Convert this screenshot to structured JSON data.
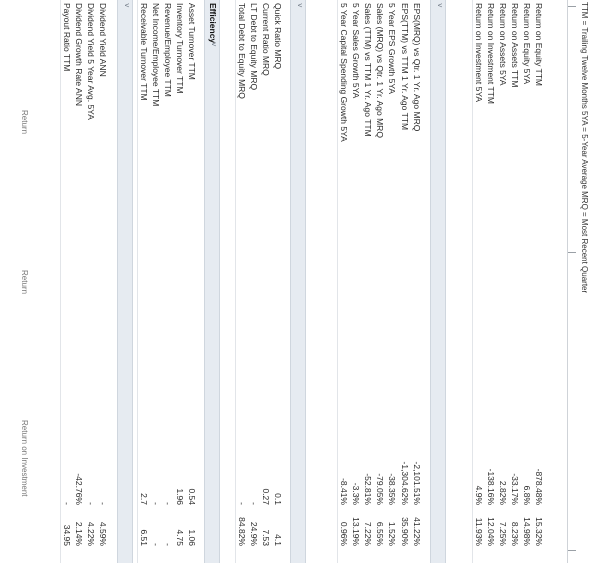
{
  "column_headers": [
    "Return on Investment",
    "Return",
    "Return"
  ],
  "sections": [
    {
      "key": "management",
      "title": "",
      "rows": [
        {
          "label": "Return on Equity TTM",
          "values": [
            "-878.48%",
            "",
            "15.32%"
          ]
        },
        {
          "label": "Return on Equity 5YA",
          "values": [
            "6.8%",
            "",
            "14.98%"
          ]
        },
        {
          "label": "Return on Assets TTM",
          "values": [
            "-33.17%",
            "",
            "8.23%"
          ]
        },
        {
          "label": "Return on Assets 5YA",
          "values": [
            "2.82%",
            "",
            "7.25%"
          ]
        },
        {
          "label": "Return on Investment TTM",
          "values": [
            "-138.16%",
            "",
            "12.04%"
          ]
        },
        {
          "label": "Return on Investment 5YA",
          "values": [
            "4.9%",
            "",
            "11.93%"
          ]
        }
      ]
    },
    {
      "key": "growth",
      "title": "",
      "rows": [
        {
          "label": "EPS(MRQ) vs Qtr. 1 Yr. Ago MRQ",
          "values": [
            "-2,101.51%",
            "",
            "41.22%"
          ]
        },
        {
          "label": "EPS(TTM) vs TTM 1 Yr. Ago TTM",
          "values": [
            "-1,304.62%",
            "",
            "35.90%"
          ]
        },
        {
          "label": "5 Year EPS Growth 5YA",
          "values": [
            "-38.35%",
            "",
            "1.52%"
          ]
        },
        {
          "label": "Sales (MRQ) vs Qtr. 1 Yr. Ago MRQ",
          "values": [
            "-79.05%",
            "",
            "6.55%"
          ]
        },
        {
          "label": "Sales (TTM) vs TTM 1 Yr. Ago TTM",
          "values": [
            "-52.81%",
            "",
            "7.22%"
          ]
        },
        {
          "label": "5 Year Sales Growth 5YA",
          "values": [
            "-3.3%",
            "",
            "13.19%"
          ]
        },
        {
          "label": "5 Year Capital Spending Growth 5YA",
          "values": [
            "-8.41%",
            "",
            "0.96%"
          ]
        }
      ]
    },
    {
      "key": "financial_strength",
      "title": "",
      "rows": [
        {
          "label": "Quick Ratio MRQ",
          "values": [
            "0.1",
            "",
            "4.1"
          ]
        },
        {
          "label": "Current Ratio MRQ",
          "values": [
            "0.27",
            "",
            "7.53"
          ]
        },
        {
          "label": "LT Debt to Equity MRQ",
          "values": [
            "-",
            "",
            "24.9%"
          ]
        },
        {
          "label": "Total Debt to Equity MRQ",
          "values": [
            "-",
            "",
            "84.82%"
          ]
        }
      ]
    },
    {
      "key": "efficiency",
      "title": "Efficiency",
      "rows": [
        {
          "label": "Asset Turnover TTM",
          "values": [
            "0.54",
            "",
            "1.06"
          ]
        },
        {
          "label": "Inventory Turnover TTM",
          "values": [
            "1.96",
            "",
            "4.75"
          ]
        },
        {
          "label": "Revenue/Employee TTM",
          "values": [
            "-",
            "",
            "-"
          ]
        },
        {
          "label": "Net Income/Employee TTM",
          "values": [
            "-",
            "",
            "-"
          ]
        },
        {
          "label": "Receivable Turnover TTM",
          "values": [
            "2.7",
            "",
            "6.51"
          ]
        }
      ]
    },
    {
      "key": "dividend",
      "title": "",
      "rows": [
        {
          "label": "Dividend Yield ANN",
          "values": [
            "-",
            "",
            "4.59%"
          ]
        },
        {
          "label": "Dividend Yield 5 Year Avg. 5YA",
          "values": [
            "-",
            "",
            "4.22%"
          ]
        },
        {
          "label": "Dividend Growth Rate ANN",
          "values": [
            "-42.76%",
            "",
            "2.14%"
          ]
        },
        {
          "label": "Payout Ratio TTM",
          "values": [
            "-",
            "",
            "34.95"
          ]
        }
      ]
    }
  ],
  "footnote": "TTM = Trailing Twelve Months  5YA = 5-Year Average  MRQ = Most Recent Quarter",
  "icons": {
    "collapse": "chevron-icon"
  }
}
